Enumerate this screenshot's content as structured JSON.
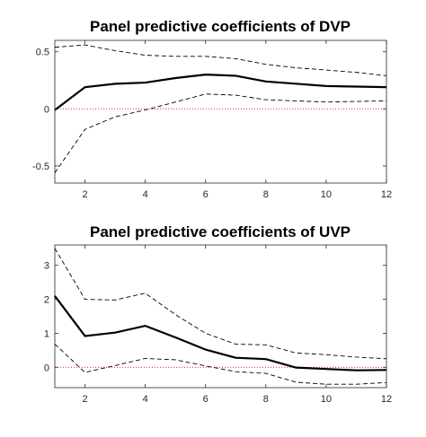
{
  "colors": {
    "coefficient": "#000000",
    "confidence_band": "#000000",
    "zero_line": "#ff0000",
    "axes": "#262626"
  },
  "chart_data": [
    {
      "type": "line",
      "title": "Panel predictive coefficients of DVP",
      "xlabel": "",
      "ylabel": "",
      "xlim": [
        1,
        12
      ],
      "ylim": [
        -0.65,
        0.6
      ],
      "xticks": [
        2,
        4,
        6,
        8,
        10,
        12
      ],
      "xtick_labels": [
        "2",
        "4",
        "6",
        "8",
        "10",
        "12"
      ],
      "yticks": [
        -0.5,
        0,
        0.5
      ],
      "ytick_labels": [
        "-0.5",
        "0",
        "0.5"
      ],
      "grid": false,
      "legend": "none",
      "x": [
        1,
        2,
        3,
        4,
        5,
        6,
        7,
        8,
        9,
        10,
        11,
        12
      ],
      "series": [
        {
          "style": "solid",
          "values": [
            -0.01,
            0.19,
            0.22,
            0.23,
            0.27,
            0.3,
            0.29,
            0.24,
            0.22,
            0.2,
            0.195,
            0.19
          ]
        },
        {
          "style": "dashed",
          "values": [
            0.54,
            0.56,
            0.51,
            0.47,
            0.46,
            0.46,
            0.44,
            0.39,
            0.36,
            0.34,
            0.32,
            0.29
          ]
        },
        {
          "style": "dashed",
          "values": [
            -0.56,
            -0.18,
            -0.07,
            -0.01,
            0.06,
            0.13,
            0.12,
            0.08,
            0.07,
            0.06,
            0.065,
            0.07
          ]
        },
        {
          "style": "dotted-zero",
          "values": [
            0,
            0,
            0,
            0,
            0,
            0,
            0,
            0,
            0,
            0,
            0,
            0
          ]
        }
      ]
    },
    {
      "type": "line",
      "title": "Panel predictive coefficients of UVP",
      "xlabel": "",
      "ylabel": "",
      "xlim": [
        1,
        12
      ],
      "ylim": [
        -0.6,
        3.6
      ],
      "xticks": [
        2,
        4,
        6,
        8,
        10,
        12
      ],
      "xtick_labels": [
        "2",
        "4",
        "6",
        "8",
        "10",
        "12"
      ],
      "yticks": [
        0,
        1,
        2,
        3
      ],
      "ytick_labels": [
        "0",
        "1",
        "2",
        "3"
      ],
      "grid": false,
      "legend": "none",
      "x": [
        1,
        2,
        3,
        4,
        5,
        6,
        7,
        8,
        9,
        10,
        11,
        12
      ],
      "series": [
        {
          "style": "solid",
          "values": [
            2.1,
            0.92,
            1.02,
            1.22,
            0.88,
            0.52,
            0.28,
            0.24,
            -0.01,
            -0.05,
            -0.09,
            -0.08
          ]
        },
        {
          "style": "dashed",
          "values": [
            3.5,
            2.0,
            1.98,
            2.18,
            1.55,
            1.0,
            0.68,
            0.66,
            0.42,
            0.37,
            0.3,
            0.25
          ]
        },
        {
          "style": "dashed",
          "values": [
            0.68,
            -0.15,
            0.05,
            0.26,
            0.22,
            0.04,
            -0.13,
            -0.18,
            -0.44,
            -0.5,
            -0.5,
            -0.45
          ]
        },
        {
          "style": "dotted-zero",
          "values": [
            0,
            0,
            0,
            0,
            0,
            0,
            0,
            0,
            0,
            0,
            0,
            0
          ]
        }
      ]
    }
  ]
}
